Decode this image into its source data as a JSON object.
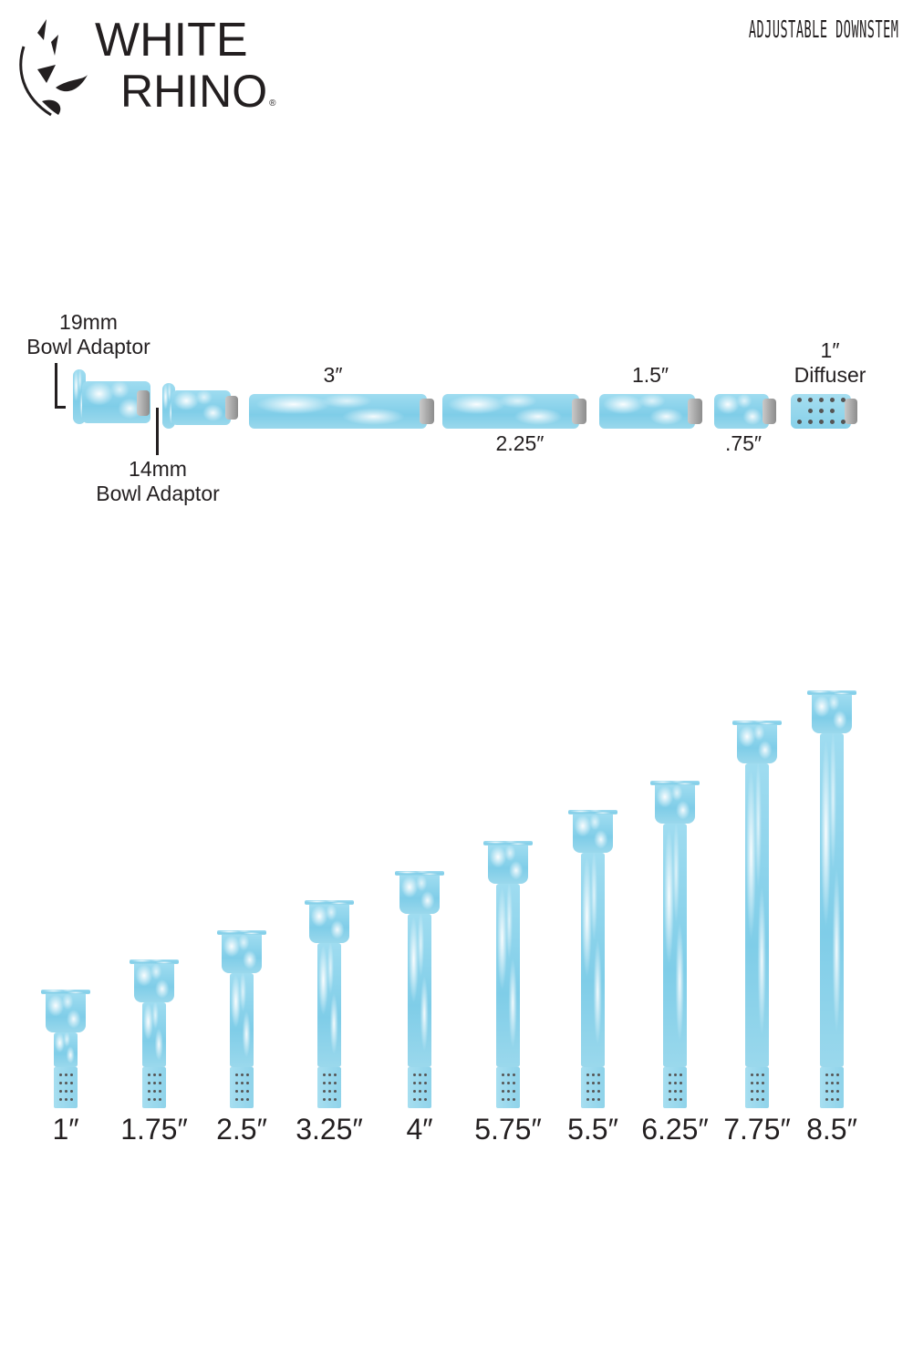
{
  "logo": {
    "line1": "WHITE",
    "line2": "RHINO",
    "registered": "®"
  },
  "title": "ADJUSTABLE DOWNSTEM",
  "components": {
    "bowl_19mm": {
      "size": "19mm",
      "name": "Bowl Adaptor"
    },
    "bowl_14mm": {
      "size": "14mm",
      "name": "Bowl Adaptor"
    },
    "tube_3": "3″",
    "tube_225": "2.25″",
    "tube_15": "1.5″",
    "tube_075": ".75″",
    "diffuser": {
      "size": "1″",
      "name": "Diffuser"
    }
  },
  "configurations": [
    "1″",
    "1.75″",
    "2.5″",
    "3.25″",
    "4″",
    "5.75″",
    "5.5″",
    "6.25″",
    "7.75″",
    "8.5″"
  ],
  "colors": {
    "silicone_blue": "#8fd3ea",
    "silicone_white": "#ffffff",
    "text": "#231f20"
  }
}
